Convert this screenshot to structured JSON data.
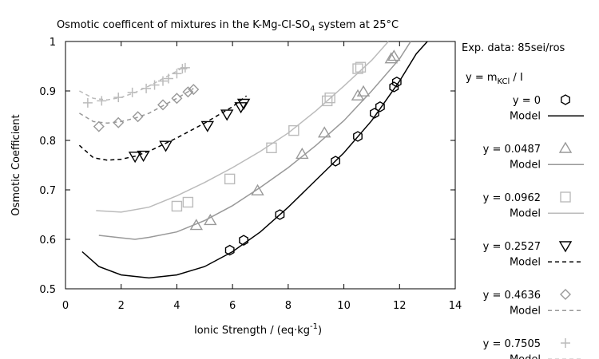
{
  "chart_data": {
    "type": "scatter",
    "title": "Osmotic coefficent of mixtures in the K-Mg-Cl-SO",
    "title_subscript": "4",
    "title_suffix": " system at 25°C",
    "xlabel": "Ionic Strength / (eq·kg",
    "xlabel_sup": "-1",
    "xlabel_suffix": ")",
    "ylabel": "Osmotic Coefficient",
    "xlim": [
      0,
      14
    ],
    "ylim": [
      0.5,
      1.0
    ],
    "xticks": [
      "0",
      "2",
      "4",
      "6",
      "8",
      "10",
      "12",
      "14"
    ],
    "yticks": [
      "0.5",
      "0.6",
      "0.7",
      "0.8",
      "0.9",
      "1"
    ],
    "grid": false,
    "legend_position": "right",
    "legend_header": "Exp. data: 85sei/ros",
    "legend_subheader": "y = m",
    "legend_subheader_sub": "KCl",
    "legend_subheader_suffix": " / I",
    "model_label": "Model",
    "colors": {
      "black": "#000000",
      "gray": "#999999",
      "lightgray": "#bbbbbb"
    },
    "series": [
      {
        "name": "y = 0",
        "marker": "hexagon",
        "color": "#000000",
        "line_style": "solid",
        "points": [
          [
            5.9,
            0.578
          ],
          [
            6.4,
            0.598
          ],
          [
            7.7,
            0.65
          ],
          [
            9.7,
            0.758
          ],
          [
            10.5,
            0.808
          ],
          [
            11.1,
            0.855
          ],
          [
            11.3,
            0.868
          ],
          [
            11.8,
            0.908
          ],
          [
            11.9,
            0.918
          ]
        ],
        "model": [
          [
            0.6,
            0.575
          ],
          [
            1.2,
            0.545
          ],
          [
            2.0,
            0.528
          ],
          [
            3.0,
            0.522
          ],
          [
            4.0,
            0.528
          ],
          [
            5.0,
            0.545
          ],
          [
            6.0,
            0.575
          ],
          [
            7.0,
            0.615
          ],
          [
            8.0,
            0.665
          ],
          [
            9.0,
            0.72
          ],
          [
            10.0,
            0.775
          ],
          [
            11.0,
            0.84
          ],
          [
            12.0,
            0.92
          ],
          [
            12.6,
            0.975
          ],
          [
            13.0,
            1.0
          ]
        ]
      },
      {
        "name": "y = 0.0487",
        "marker": "triangle-up",
        "color": "#999999",
        "line_style": "solid",
        "points": [
          [
            4.7,
            0.628
          ],
          [
            5.2,
            0.638
          ],
          [
            6.9,
            0.698
          ],
          [
            8.5,
            0.772
          ],
          [
            9.3,
            0.815
          ],
          [
            10.5,
            0.89
          ],
          [
            10.7,
            0.898
          ],
          [
            11.7,
            0.965
          ],
          [
            11.8,
            0.97
          ]
        ],
        "model": [
          [
            1.2,
            0.608
          ],
          [
            2.0,
            0.603
          ],
          [
            2.5,
            0.6
          ],
          [
            3.0,
            0.604
          ],
          [
            4.0,
            0.615
          ],
          [
            5.0,
            0.638
          ],
          [
            6.0,
            0.668
          ],
          [
            7.0,
            0.705
          ],
          [
            8.0,
            0.745
          ],
          [
            9.0,
            0.79
          ],
          [
            10.0,
            0.84
          ],
          [
            11.0,
            0.9
          ],
          [
            12.0,
            0.965
          ],
          [
            12.4,
            1.0
          ]
        ]
      },
      {
        "name": "y = 0.0962",
        "marker": "square",
        "color": "#bbbbbb",
        "line_style": "solid",
        "points": [
          [
            4.0,
            0.667
          ],
          [
            4.4,
            0.675
          ],
          [
            5.9,
            0.722
          ],
          [
            7.4,
            0.785
          ],
          [
            8.2,
            0.82
          ],
          [
            9.4,
            0.88
          ],
          [
            9.5,
            0.886
          ],
          [
            10.5,
            0.945
          ],
          [
            10.6,
            0.948
          ]
        ],
        "model": [
          [
            1.1,
            0.658
          ],
          [
            2.0,
            0.655
          ],
          [
            3.0,
            0.665
          ],
          [
            4.0,
            0.688
          ],
          [
            5.0,
            0.715
          ],
          [
            6.0,
            0.745
          ],
          [
            7.0,
            0.778
          ],
          [
            8.0,
            0.815
          ],
          [
            9.0,
            0.86
          ],
          [
            10.0,
            0.91
          ],
          [
            11.0,
            0.962
          ],
          [
            11.6,
            1.0
          ]
        ]
      },
      {
        "name": "y = 0.2527",
        "marker": "triangle-down",
        "color": "#000000",
        "line_style": "dashed",
        "points": [
          [
            2.5,
            0.768
          ],
          [
            2.8,
            0.77
          ],
          [
            3.6,
            0.79
          ],
          [
            5.1,
            0.83
          ],
          [
            5.8,
            0.853
          ],
          [
            6.3,
            0.868
          ],
          [
            6.4,
            0.875
          ]
        ],
        "model": [
          [
            0.5,
            0.79
          ],
          [
            1.0,
            0.765
          ],
          [
            1.5,
            0.76
          ],
          [
            2.0,
            0.762
          ],
          [
            2.5,
            0.768
          ],
          [
            3.0,
            0.778
          ],
          [
            4.0,
            0.805
          ],
          [
            5.0,
            0.835
          ],
          [
            6.0,
            0.868
          ],
          [
            6.5,
            0.89
          ]
        ]
      },
      {
        "name": "y = 0.4636",
        "marker": "diamond",
        "color": "#999999",
        "line_style": "dashed",
        "points": [
          [
            1.2,
            0.828
          ],
          [
            1.9,
            0.836
          ],
          [
            2.6,
            0.848
          ],
          [
            3.5,
            0.872
          ],
          [
            4.0,
            0.885
          ],
          [
            4.4,
            0.898
          ],
          [
            4.6,
            0.903
          ]
        ],
        "model": [
          [
            0.5,
            0.855
          ],
          [
            1.0,
            0.838
          ],
          [
            1.5,
            0.835
          ],
          [
            2.0,
            0.838
          ],
          [
            2.5,
            0.845
          ],
          [
            3.0,
            0.855
          ],
          [
            3.5,
            0.87
          ],
          [
            4.0,
            0.885
          ],
          [
            4.6,
            0.905
          ]
        ]
      },
      {
        "name": "y = 0.7505",
        "marker": "plus",
        "color": "#bbbbbb",
        "line_style": "dashed",
        "points": [
          [
            0.8,
            0.876
          ],
          [
            1.3,
            0.88
          ],
          [
            1.9,
            0.887
          ],
          [
            2.4,
            0.897
          ],
          [
            2.9,
            0.905
          ],
          [
            3.2,
            0.912
          ],
          [
            3.5,
            0.92
          ],
          [
            3.7,
            0.925
          ],
          [
            4.0,
            0.935
          ],
          [
            4.2,
            0.945
          ],
          [
            4.3,
            0.947
          ]
        ],
        "model": [
          [
            0.5,
            0.9
          ],
          [
            1.0,
            0.885
          ],
          [
            1.5,
            0.882
          ],
          [
            2.0,
            0.887
          ],
          [
            2.5,
            0.897
          ],
          [
            3.0,
            0.91
          ],
          [
            3.5,
            0.925
          ],
          [
            4.0,
            0.94
          ],
          [
            4.3,
            0.95
          ]
        ]
      }
    ]
  }
}
